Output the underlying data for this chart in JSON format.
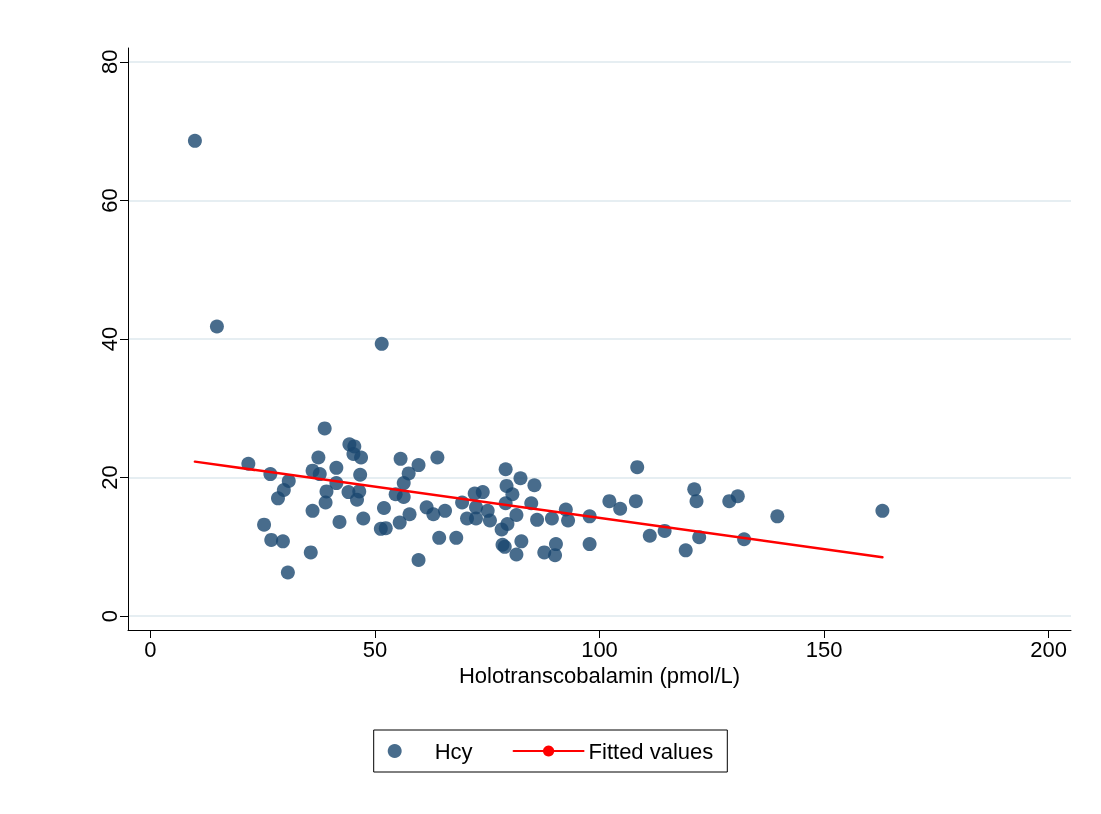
{
  "chart_data": {
    "type": "scatter",
    "xlabel": "Holotranscobalamin (pmol/L)",
    "xlim": [
      -5,
      205
    ],
    "xticks": [
      0,
      50,
      100,
      150,
      200
    ],
    "ylim": [
      -2,
      82
    ],
    "yticks": [
      0,
      20,
      40,
      60,
      80
    ],
    "grid": "y",
    "legend": "bottom",
    "marker": "circle",
    "series": [
      {
        "name": "Hcy",
        "type": "scatter",
        "color": "#1a476f",
        "x": [
          9.9,
          14.8,
          51.5,
          21.8,
          26.7,
          30.8,
          29.7,
          28.4,
          25.3,
          26.9,
          29.5,
          30.6,
          38.8,
          37.4,
          36.1,
          37.7,
          41.4,
          41.4,
          39.2,
          39,
          36.1,
          35.7,
          42.1,
          44.3,
          45.4,
          45.2,
          46.9,
          46.7,
          44.1,
          46.5,
          46,
          47.4,
          52,
          51.3,
          52.4,
          55.7,
          59.7,
          57.5,
          56.4,
          54.6,
          56.4,
          55.5,
          57.7,
          59.7,
          63.9,
          61.5,
          63,
          65.6,
          64.3,
          68.1,
          69.4,
          70.5,
          72.2,
          74,
          72.5,
          72.5,
          75.1,
          75.6,
          79.1,
          79.3,
          80.6,
          79.1,
          81.5,
          78.2,
          79.5,
          78.4,
          78.9,
          82.6,
          81.5,
          82.4,
          85.5,
          84.8,
          86.1,
          89.4,
          92.5,
          93,
          87.7,
          90.1,
          90.3,
          97.8,
          97.8,
          102.2,
          104.6,
          108.4,
          108.1,
          111.2,
          114.5,
          119.2,
          121.1,
          121.6,
          122.2,
          128.9,
          130.8,
          132.2,
          139.6,
          163
        ],
        "values": [
          68.6,
          41.8,
          39.3,
          22,
          20.5,
          19.5,
          18.2,
          17,
          13.2,
          11,
          10.8,
          6.3,
          27.1,
          22.9,
          21,
          20.5,
          21.4,
          19.2,
          18,
          16.4,
          15.2,
          9.2,
          13.6,
          24.8,
          24.5,
          23.4,
          22.9,
          20.4,
          17.9,
          18,
          16.8,
          14.1,
          15.6,
          12.6,
          12.7,
          22.7,
          21.8,
          20.6,
          19.2,
          17.6,
          17.2,
          13.5,
          14.7,
          8.1,
          22.9,
          15.7,
          14.7,
          15.2,
          11.3,
          11.3,
          16.4,
          14.1,
          17.7,
          17.9,
          14.1,
          15.7,
          15.2,
          13.8,
          21.2,
          18.8,
          17.6,
          16.3,
          14.6,
          12.5,
          13.3,
          10.3,
          10,
          10.8,
          8.9,
          19.9,
          18.9,
          16.3,
          13.9,
          14.1,
          15.4,
          13.8,
          9.2,
          8.8,
          10.4,
          14.4,
          10.4,
          16.6,
          15.5,
          21.5,
          16.6,
          11.6,
          12.3,
          9.5,
          18.3,
          16.6,
          11.4,
          16.6,
          17.3,
          11.1,
          14.4,
          15.2
        ]
      },
      {
        "name": "Fitted values",
        "type": "line",
        "color": "#ff0000",
        "marker": "none",
        "line_style": "solid",
        "x": [
          9.9,
          163
        ],
        "values": [
          22.3,
          8.5
        ]
      }
    ]
  }
}
